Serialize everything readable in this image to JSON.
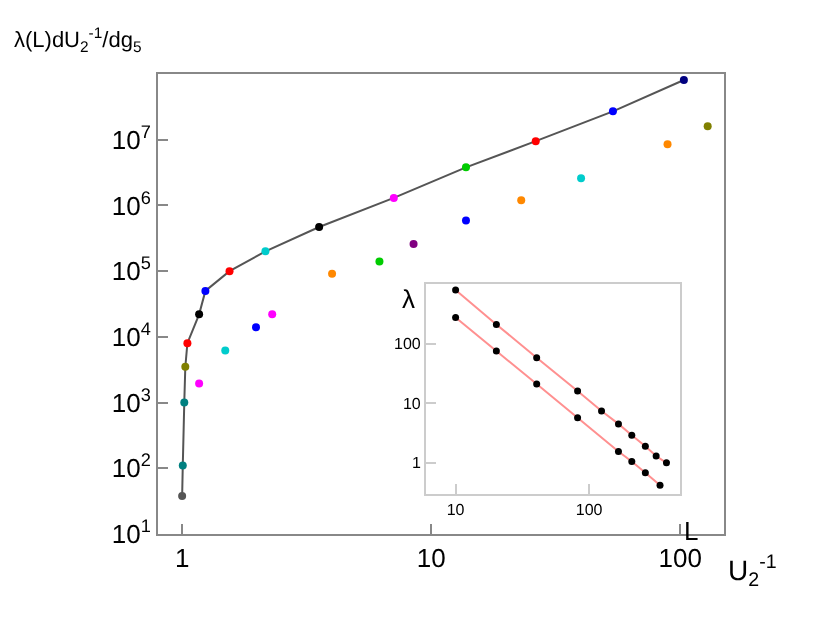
{
  "chart_data": [
    {
      "type": "scatter",
      "xlabel": "U$_{2}$$^{-1}$",
      "ylabel": "λ(L)dU$_{2}$$^{-1}$/dg$_{5}$",
      "log": "xy",
      "marker": "circle",
      "xlim": [
        0.8,
        150
      ],
      "ylim": [
        10,
        100000000
      ],
      "xticks": [
        1,
        10,
        100
      ],
      "yticks": [
        {
          "value": 10,
          "label": "10$^{1}$"
        },
        {
          "value": 100,
          "label": "10$^{2}$"
        },
        {
          "value": 1000,
          "label": "10$^{3}$"
        },
        {
          "value": 10000,
          "label": "10$^{4}$"
        },
        {
          "value": 100000,
          "label": "10$^{5}$"
        },
        {
          "value": 1000000,
          "label": "10$^{6}$"
        },
        {
          "value": 10000000,
          "label": "10$^{7}$"
        }
      ],
      "series": [
        {
          "type": "line",
          "color": "#555555",
          "colors": [
            "#555555",
            "#008080",
            "#008080",
            "#808000",
            "#ff0000",
            "#000000",
            "#0000ff",
            "#ff0000",
            "#00cccc",
            "#000000",
            "#ff00ff",
            "#00cc00",
            "#ff0000",
            "#0000ff",
            "#000080"
          ],
          "x": [
            1.0,
            1.006,
            1.02,
            1.03,
            1.05,
            1.17,
            1.24,
            1.55,
            2.16,
            3.55,
            7.08,
            13.8,
            26.3,
            53.7,
            103.5
          ],
          "values": [
            38,
            110,
            1000,
            3500,
            8000,
            22000,
            50000,
            100000,
            200000,
            470000,
            1300000,
            3800000,
            9500000,
            27000000,
            81000000
          ]
        },
        {
          "colors": [
            "#ff00ff",
            "#00cccc",
            "#0000ff",
            "#ff00ff",
            "#ff8800",
            "#00cc00",
            "#800080",
            "#0000ff",
            "#ff8800",
            "#00cccc",
            "#ff8800",
            "#808000"
          ],
          "x": [
            1.17,
            1.49,
            1.98,
            2.3,
            4.0,
            6.2,
            8.5,
            13.8,
            23,
            40,
            89,
            129
          ],
          "values": [
            1950,
            6200,
            14000,
            22000,
            91000,
            140000,
            260000,
            590000,
            1200000,
            2600000,
            8500000,
            16000000
          ]
        }
      ]
    },
    {
      "type": "line",
      "xlabel": "L",
      "ylabel": "λ",
      "log": "xy",
      "marker": "circle",
      "xlim": [
        6,
        480
      ],
      "ylim": [
        0.3,
        1000
      ],
      "xticks": [
        10,
        100
      ],
      "yticks": [
        1,
        10,
        100
      ],
      "series": [
        {
          "color": "#ff9090",
          "colors": [
            "#000000",
            "#000000",
            "#000000",
            "#000000",
            "#000000",
            "#000000",
            "#000000",
            "#000000",
            "#000000",
            "#000000"
          ],
          "x": [
            10,
            20.2,
            40.5,
            82,
            124,
            166,
            209,
            264,
            318,
            380
          ],
          "values": [
            790,
            210,
            58,
            16,
            7.4,
            4.5,
            2.9,
            1.9,
            1.3,
            1.0
          ]
        },
        {
          "color": "#ff9090",
          "colors": [
            "#000000",
            "#000000",
            "#000000",
            "#000000",
            "#000000",
            "#000000",
            "#000000",
            "#000000"
          ],
          "x": [
            10,
            20.2,
            40.5,
            82,
            166,
            209,
            264,
            340
          ],
          "values": [
            275,
            75,
            21,
            5.7,
            1.55,
            1.05,
            0.68,
            0.42
          ]
        }
      ]
    }
  ]
}
